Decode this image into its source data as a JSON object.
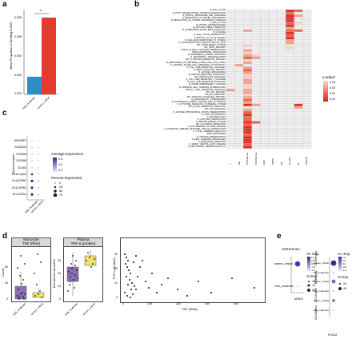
{
  "panel_labels": [
    "a",
    "b",
    "c",
    "d",
    "e"
  ],
  "panel_a": {
    "ylabel": "Mean Proportion of Dividing B-ASC",
    "star": "*",
    "yticks": [
      "0.000",
      "0.002",
      "0.004",
      "0.006",
      "0.008"
    ],
    "categories": [
      "mild_moderate",
      "severe_critical"
    ],
    "bar_colors": [
      "#2a8fc4",
      "#e53b2e"
    ]
  },
  "panel_b": {
    "columns": [
      "T",
      "NK",
      "CD14mono",
      "CD16mono",
      "pDC",
      "HSPC",
      "DC",
      "B_ASC",
      "B",
      "Platelet"
    ],
    "column_labels": [
      "T",
      "NK",
      "CD14mono",
      "CD16mono",
      "pDC",
      "HSPC",
      "DC",
      "B_ASC",
      "B",
      "Platelet"
    ],
    "legend_title": "p.adjust",
    "legend_ticks": [
      "0.04",
      "0.03",
      "0.02",
      "0.01"
    ],
    "rows": [
      "R_CELL_CYCLE",
      "R_POST_TRANSLATIONAL_PROTEIN_MODIFICATION",
      "R_MITOTIC_METAPHASE_AND_ANAPHASE",
      "R_SEPARATION_OF_SISTER_CHROMATIDS",
      "R_RESOLUTION_OF_SISTER_CHROMATID_COHESION",
      "K_CELL_CYCLE",
      "R_MITOTIC_PROMETAPHASE",
      "R_AMYLOID_FIBER_FORMATION",
      "R_INTERFERON_ALPHA_BETA_SIGNALING",
      "R_M_PHASE",
      "R_CELL_CYCLE_CHECKPOINTS",
      "R_MITOTIC_G2_G2_M_PHASES",
      "R_CELLULAR_RESPONSES_TO_STIMULI",
      "R_TRANSCRIPTIONAL_REGULATION_BY_TP53",
      "WP_COMPLEMENT_SYSTEM",
      "PID_CMYB_PATHWAY",
      "R_MHC_CLASS_II_ANTIGEN_PRESENTATION",
      "NABA_MATRISOME_ASSOCIATED",
      "R_INTERFERON_GAMMA_SIGNALING",
      "R_NEUTROPHIL_DEGRANULATION",
      "WP_G_PROTEIN_RECEPTOR_PATHWAY",
      "R_IMMUNOREG_INT_BETWEEN_LYMPH_AND_NON_LYMPH",
      "R_NATURAL_KILLER_CELL_MEDIATED_CYTOTOXICITY",
      "R_TOLL_LIKE_RECEPTOR_CASCADES",
      "K_MAPK_SIGNALING_PATHWAY",
      "R_ANTIGEN_PROCESSING",
      "R_VESICLE_MEDIATED_TRANSPORT",
      "WP_OSTEOCLAST_SIGNALING",
      "R_TOLL_LIKE_RECEPTOR_4_CASCADE",
      "K_TOLL_LIKE_RECEPTOR_SIGNALING",
      "R_MYD88_INDEPENDENT_CASCADE",
      "R_INTEGRIN_CELL_SURFACE_INTERACTIONS",
      "KEGG_T_CELL_RECEPTOR_SIGNALING",
      "PID_AP1_PATHWAY",
      "PID_IL12_2PATHWAY",
      "WP_TNFALPHA_SIGNALING_PATHWAY",
      "R_SIGNALING_BY_INTERLEUKINS",
      "R_SUCCESSFUL_EVENTS_KINASE_AND_ACTIVATION",
      "R_CYTOKINE_SIGNALING_IN_IMMUNE_SYSTEM",
      "WP_B_CELL_RECEPTOR_SIGNALING",
      "WP_IL18_SIGNALING",
      "R_ANTIGEN_PROCESSING_CROSS_PRESENTATION",
      "K_VIRAL_MYOCARDITIS",
      "K_LEGIONELLOSIS",
      "R_ROS_RNS_PRODUCTION",
      "R_INNATE_IMMUNE_SYSTEM",
      "WP_ALLOGRAFT_REJECTION",
      "K_AUTOIMMUNE_THYROID_DISEASE",
      "K_INTESTINAL_IMMUNE_NETWORK_FOR_IGA_PRODUCTION",
      "K_TYPE_I_DIABETES_MELLITUS",
      "NABA_MATRISOME",
      "R_ANTIGEN_PRESENTATION",
      "K_CELL_ADHESION_MOLECULES",
      "K_LEISHMANIA_INFECTION",
      "K_GRAFT_VERSUS_HOST_DISEASE",
      "R_NEUTROPHIL_DEGRANULATION_2"
    ],
    "colors": {
      "empty": "#f0f0f0",
      "c1": "#fbd3c9",
      "c2": "#f7a08c",
      "c3": "#ef6548",
      "c4": "#de2d26"
    }
  },
  "panel_c": {
    "ylabel": "All monocytes",
    "genes": [
      "MCEMP1",
      "S100A12",
      "S100A9",
      "S100A8",
      "CD163",
      "HLA-DQA1",
      "HLA-DRB1",
      "HLA-DPB1",
      "HLA-DPA1"
    ],
    "xcats": [
      "mild_moderate",
      "severe_critical"
    ],
    "avg_title": "Average Expression",
    "avg_ticks": [
      "0.4",
      "0.0",
      "-0.4"
    ],
    "pct_title": "Percent Expressed",
    "pct_ticks": [
      "0",
      "25",
      "50",
      "75"
    ]
  },
  "panel_d": {
    "facet1": "Monocyte\nTNF (RNA)",
    "facet1_l1": "Monocyte",
    "facet1_l2": "TNF (RNA)",
    "facet2_l1": "Plasma",
    "facet2_l2": "TNF-α (protein)",
    "ylabel1": "Counts",
    "ylabel2": "Normalised expression",
    "yticks1": [
      "0",
      "40",
      "80"
    ],
    "yticks2": [
      "0",
      "10",
      "20",
      "30"
    ],
    "xcats": [
      "mild_moderate",
      "severe_critical"
    ],
    "scatter_xlabel": "TNF (RNA)",
    "scatter_ylabel": "TNF-α (protein)",
    "scatter_xticks": [
      "0",
      "100",
      "200",
      "300",
      "400"
    ],
    "scatter_yticks": [
      "0",
      "10",
      "20",
      "30"
    ]
  },
  "panel_e": {
    "left_title": "CD16mono",
    "left_gene": "ARID3",
    "left_cats": [
      "severe_critical",
      "mild_moderate"
    ],
    "right_groups": [
      "CD16mono",
      "B-Memory",
      "CD14mono",
      "CD14Mono"
    ],
    "right_gene": "PLAC8",
    "right_cats": [
      "severe_critical",
      "mild_moderate",
      "severe_critical",
      "mild_moderate",
      "severe_critical",
      "mild_moderate"
    ],
    "avg_title": "Av. Exp.",
    "avg_ticks_left": [
      "1.0",
      "0.5",
      "0.0",
      "-0.5",
      "-1.0"
    ],
    "avg_ticks_right": [
      "1.0",
      "0.5",
      "0.0",
      "-0.5",
      "-1.0"
    ],
    "pct_title": "% Exp.",
    "pct_ticks_left": [
      "10",
      "15",
      "20"
    ],
    "pct_ticks_right": [
      "20",
      "40"
    ]
  }
}
